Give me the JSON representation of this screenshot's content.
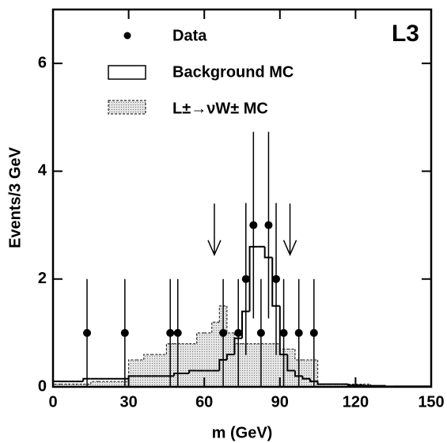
{
  "chart_data": {
    "type": "histogram",
    "label": "L3",
    "xlabel": "m (GeV)",
    "ylabel": "Events/3 GeV",
    "xlim": [
      0,
      150
    ],
    "ylim": [
      0,
      7
    ],
    "xticks": [
      0,
      30,
      60,
      90,
      120,
      150
    ],
    "yticks": [
      0,
      2,
      4,
      6
    ],
    "bins": [
      0,
      3,
      6,
      9,
      12,
      15,
      18,
      21,
      24,
      27,
      30,
      33,
      36,
      39,
      42,
      45,
      48,
      51,
      54,
      57,
      60,
      63,
      66,
      69,
      72,
      75,
      78,
      81,
      84,
      87,
      90,
      93,
      96,
      99,
      102,
      105,
      108,
      111,
      114,
      117,
      120,
      123,
      126,
      129,
      132,
      135,
      138,
      141,
      144,
      147,
      150
    ],
    "series": [
      {
        "name": "L±→νW± MC",
        "color": "#c8c8c8",
        "values": [
          0.05,
          0.05,
          0.05,
          0.05,
          0.05,
          0.1,
          0.1,
          0.1,
          0.1,
          0.1,
          0.5,
          0.5,
          0.6,
          0.6,
          0.6,
          0.8,
          0.8,
          0.8,
          0.8,
          1.0,
          1.0,
          1.2,
          1.5,
          1.0,
          0.8,
          0.8,
          0.8,
          0.8,
          0.8,
          0.8,
          0.7,
          0.7,
          0.5,
          0.5,
          0.5,
          0.05,
          0.05,
          0.05,
          0.05,
          0.05,
          0.05,
          0.05,
          0,
          0,
          0,
          0,
          0,
          0,
          0,
          0
        ]
      },
      {
        "name": "Background MC",
        "color": "#000000",
        "values": [
          0.1,
          0.1,
          0.1,
          0.1,
          0.15,
          0.15,
          0.15,
          0.15,
          0.15,
          0.15,
          0.2,
          0.2,
          0.2,
          0.2,
          0.2,
          0.2,
          0.25,
          0.25,
          0.3,
          0.3,
          0.3,
          0.3,
          0.5,
          0.6,
          0.9,
          1.4,
          2.6,
          2.6,
          2.4,
          1.5,
          0.6,
          0.3,
          0.2,
          0.15,
          0.1,
          0.05,
          0.05,
          0.05,
          0.05,
          0.03,
          0.03,
          0.02,
          0.02,
          0.02,
          0.01,
          0.01,
          0.01,
          0.01,
          0.01,
          0.01
        ]
      }
    ],
    "data": {
      "name": "Data",
      "color": "#000000",
      "x": [
        13.5,
        28.5,
        46.5,
        49.5,
        67.5,
        73.5,
        76.5,
        79.5,
        82.5,
        85.5,
        88.5,
        91.5,
        97.5,
        103.5
      ],
      "values": [
        1,
        1,
        1,
        1,
        1,
        1,
        2,
        3,
        1,
        3,
        2,
        1,
        1,
        1
      ],
      "errors": [
        1,
        1,
        1,
        1,
        1,
        1,
        1.41,
        1.73,
        1,
        1.73,
        1.41,
        1,
        1,
        1
      ]
    },
    "arrows": [
      64,
      94
    ]
  }
}
